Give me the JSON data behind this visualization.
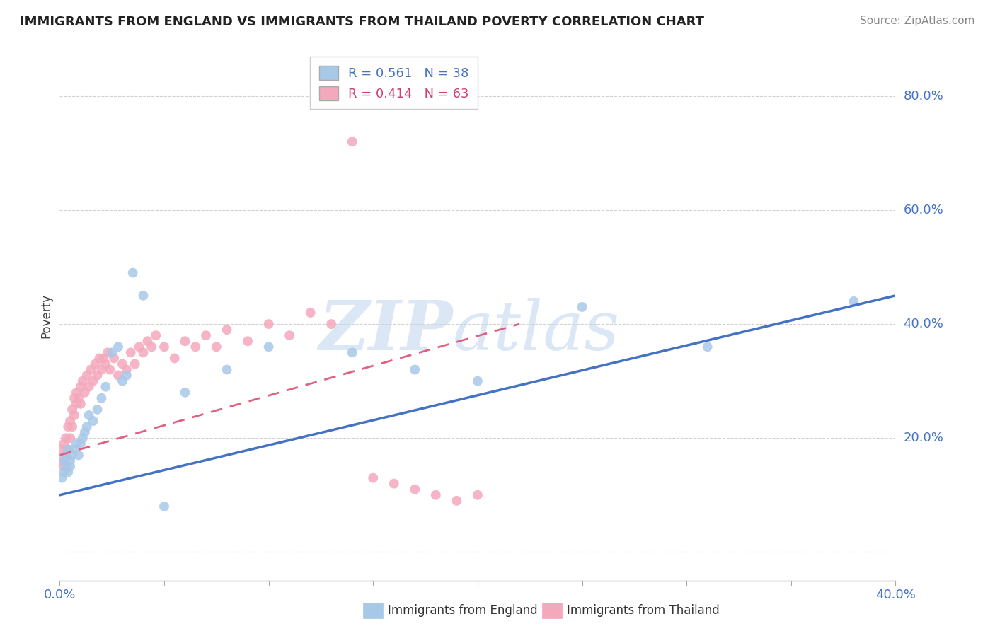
{
  "title": "IMMIGRANTS FROM ENGLAND VS IMMIGRANTS FROM THAILAND POVERTY CORRELATION CHART",
  "source_text": "Source: ZipAtlas.com",
  "ylabel": "Poverty",
  "xlim": [
    0.0,
    0.4
  ],
  "ylim": [
    -0.05,
    0.88
  ],
  "xticks": [
    0.0,
    0.05,
    0.1,
    0.15,
    0.2,
    0.25,
    0.3,
    0.35,
    0.4
  ],
  "yticks": [
    0.0,
    0.2,
    0.4,
    0.6,
    0.8
  ],
  "yticklabels": [
    "",
    "20.0%",
    "40.0%",
    "60.0%",
    "80.0%"
  ],
  "england_R": 0.561,
  "england_N": 38,
  "thailand_R": 0.414,
  "thailand_N": 63,
  "england_color": "#a8c8e8",
  "thailand_color": "#f4a8bc",
  "england_line_color": "#4472c4",
  "thailand_line_color": "#e06080",
  "england_line_x0": 0.0,
  "england_line_y0": 0.1,
  "england_line_x1": 0.4,
  "england_line_y1": 0.45,
  "thailand_line_x0": 0.0,
  "thailand_line_y0": 0.17,
  "thailand_line_x1": 0.22,
  "thailand_line_y1": 0.4,
  "england_scatter_x": [
    0.001,
    0.002,
    0.002,
    0.003,
    0.003,
    0.004,
    0.004,
    0.005,
    0.005,
    0.006,
    0.007,
    0.008,
    0.009,
    0.01,
    0.011,
    0.012,
    0.013,
    0.014,
    0.016,
    0.018,
    0.02,
    0.022,
    0.025,
    0.028,
    0.03,
    0.032,
    0.035,
    0.04,
    0.05,
    0.06,
    0.08,
    0.1,
    0.14,
    0.2,
    0.31,
    0.38,
    0.17,
    0.25
  ],
  "england_scatter_y": [
    0.13,
    0.14,
    0.16,
    0.15,
    0.17,
    0.14,
    0.18,
    0.16,
    0.15,
    0.17,
    0.18,
    0.19,
    0.17,
    0.19,
    0.2,
    0.21,
    0.22,
    0.24,
    0.23,
    0.25,
    0.27,
    0.29,
    0.35,
    0.36,
    0.3,
    0.31,
    0.49,
    0.45,
    0.08,
    0.28,
    0.32,
    0.36,
    0.35,
    0.3,
    0.36,
    0.44,
    0.32,
    0.43
  ],
  "thailand_scatter_x": [
    0.001,
    0.001,
    0.002,
    0.002,
    0.003,
    0.003,
    0.004,
    0.004,
    0.005,
    0.005,
    0.006,
    0.006,
    0.007,
    0.007,
    0.008,
    0.008,
    0.009,
    0.01,
    0.01,
    0.011,
    0.012,
    0.013,
    0.014,
    0.015,
    0.016,
    0.017,
    0.018,
    0.019,
    0.02,
    0.021,
    0.022,
    0.023,
    0.024,
    0.026,
    0.028,
    0.03,
    0.032,
    0.034,
    0.036,
    0.038,
    0.04,
    0.042,
    0.044,
    0.046,
    0.05,
    0.055,
    0.06,
    0.065,
    0.07,
    0.075,
    0.08,
    0.09,
    0.1,
    0.11,
    0.12,
    0.13,
    0.14,
    0.15,
    0.16,
    0.17,
    0.18,
    0.19,
    0.2
  ],
  "thailand_scatter_y": [
    0.16,
    0.18,
    0.15,
    0.19,
    0.17,
    0.2,
    0.18,
    0.22,
    0.2,
    0.23,
    0.22,
    0.25,
    0.24,
    0.27,
    0.26,
    0.28,
    0.27,
    0.29,
    0.26,
    0.3,
    0.28,
    0.31,
    0.29,
    0.32,
    0.3,
    0.33,
    0.31,
    0.34,
    0.32,
    0.34,
    0.33,
    0.35,
    0.32,
    0.34,
    0.31,
    0.33,
    0.32,
    0.35,
    0.33,
    0.36,
    0.35,
    0.37,
    0.36,
    0.38,
    0.36,
    0.34,
    0.37,
    0.36,
    0.38,
    0.36,
    0.39,
    0.37,
    0.4,
    0.38,
    0.42,
    0.4,
    0.72,
    0.13,
    0.12,
    0.11,
    0.1,
    0.09,
    0.1
  ]
}
